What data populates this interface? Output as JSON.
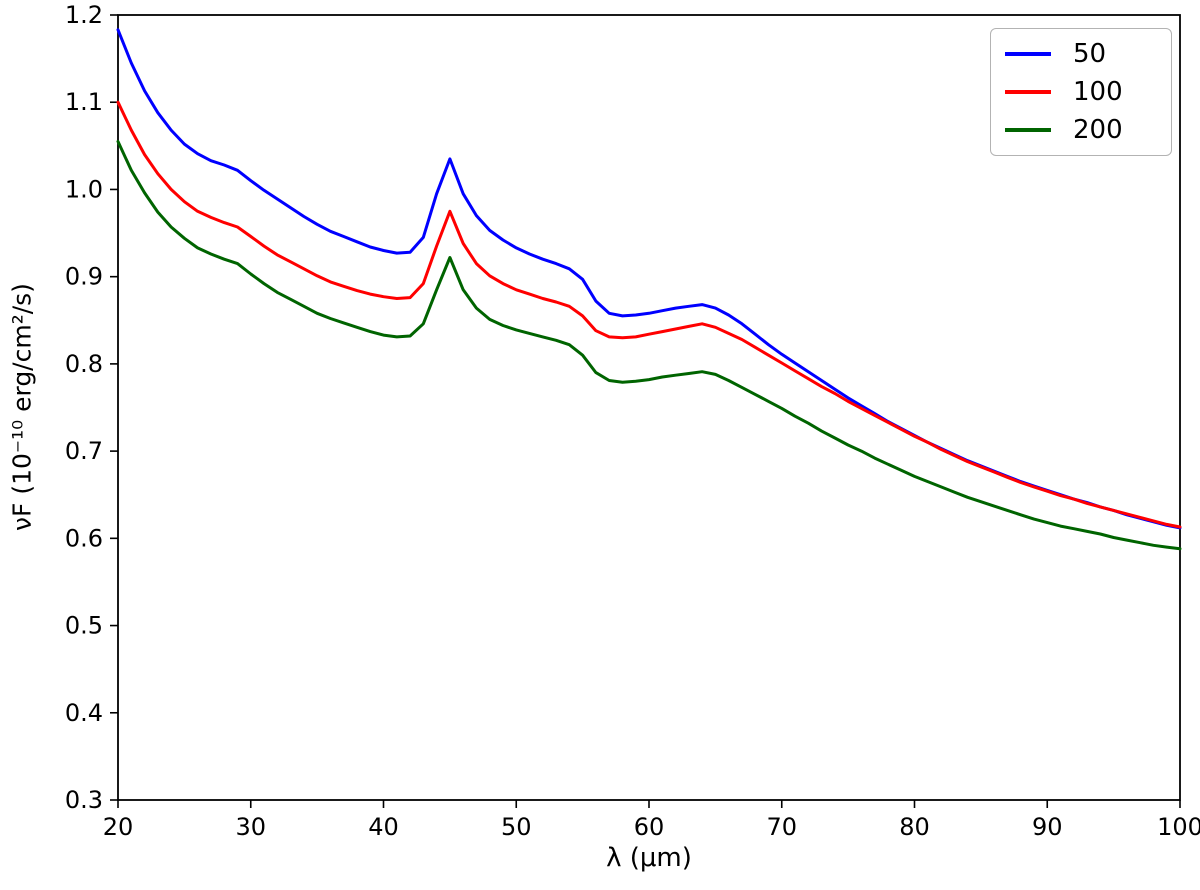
{
  "chart_data": {
    "type": "line",
    "title": "",
    "xlabel": "λ (μm)",
    "ylabel": "νF (10⁻¹⁰ erg/cm²/s)",
    "xlim": [
      20,
      100
    ],
    "ylim": [
      0.3,
      1.2
    ],
    "xticks": [
      20,
      30,
      40,
      50,
      60,
      70,
      80,
      90,
      100
    ],
    "yticks": [
      0.3,
      0.4,
      0.5,
      0.6,
      0.7,
      0.8,
      0.9,
      1.0,
      1.1,
      1.2
    ],
    "grid": false,
    "legend_position": "upper right",
    "frame_color": "#000000",
    "x": [
      20,
      21,
      22,
      23,
      24,
      25,
      26,
      27,
      28,
      29,
      30,
      31,
      32,
      33,
      34,
      35,
      36,
      37,
      38,
      39,
      40,
      41,
      42,
      43,
      44,
      45,
      46,
      47,
      48,
      49,
      50,
      51,
      52,
      53,
      54,
      55,
      56,
      57,
      58,
      59,
      60,
      61,
      62,
      63,
      64,
      65,
      66,
      67,
      68,
      69,
      70,
      71,
      72,
      73,
      74,
      75,
      76,
      77,
      78,
      79,
      80,
      81,
      82,
      83,
      84,
      85,
      86,
      87,
      88,
      89,
      90,
      91,
      92,
      93,
      94,
      95,
      96,
      97,
      98,
      99,
      100
    ],
    "series": [
      {
        "name": "50",
        "color": "#0000ff",
        "values": [
          1.183,
          1.145,
          1.113,
          1.088,
          1.068,
          1.052,
          1.041,
          1.033,
          1.028,
          1.022,
          1.01,
          0.999,
          0.989,
          0.979,
          0.969,
          0.96,
          0.952,
          0.946,
          0.94,
          0.934,
          0.93,
          0.927,
          0.928,
          0.945,
          0.995,
          1.035,
          0.995,
          0.97,
          0.953,
          0.942,
          0.933,
          0.926,
          0.92,
          0.915,
          0.909,
          0.897,
          0.872,
          0.858,
          0.855,
          0.856,
          0.858,
          0.861,
          0.864,
          0.866,
          0.868,
          0.864,
          0.856,
          0.846,
          0.834,
          0.822,
          0.811,
          0.801,
          0.791,
          0.781,
          0.771,
          0.761,
          0.752,
          0.743,
          0.734,
          0.726,
          0.718,
          0.71,
          0.703,
          0.696,
          0.689,
          0.683,
          0.677,
          0.671,
          0.665,
          0.66,
          0.655,
          0.65,
          0.645,
          0.641,
          0.636,
          0.632,
          0.627,
          0.623,
          0.619,
          0.615,
          0.612
        ]
      },
      {
        "name": "100",
        "color": "#ff0000",
        "values": [
          1.1,
          1.068,
          1.04,
          1.018,
          1.0,
          0.986,
          0.975,
          0.968,
          0.962,
          0.957,
          0.946,
          0.935,
          0.925,
          0.917,
          0.909,
          0.901,
          0.894,
          0.889,
          0.884,
          0.88,
          0.877,
          0.875,
          0.876,
          0.892,
          0.935,
          0.975,
          0.938,
          0.915,
          0.901,
          0.892,
          0.885,
          0.88,
          0.875,
          0.871,
          0.866,
          0.855,
          0.838,
          0.831,
          0.83,
          0.831,
          0.834,
          0.837,
          0.84,
          0.843,
          0.846,
          0.842,
          0.835,
          0.828,
          0.819,
          0.81,
          0.801,
          0.792,
          0.783,
          0.774,
          0.766,
          0.757,
          0.749,
          0.741,
          0.733,
          0.725,
          0.717,
          0.71,
          0.702,
          0.695,
          0.688,
          0.682,
          0.676,
          0.67,
          0.664,
          0.659,
          0.654,
          0.649,
          0.645,
          0.64,
          0.636,
          0.632,
          0.628,
          0.624,
          0.62,
          0.616,
          0.613
        ]
      },
      {
        "name": "200",
        "color": "#006400",
        "values": [
          1.055,
          1.022,
          0.996,
          0.974,
          0.957,
          0.944,
          0.933,
          0.926,
          0.92,
          0.915,
          0.903,
          0.892,
          0.882,
          0.874,
          0.866,
          0.858,
          0.852,
          0.847,
          0.842,
          0.837,
          0.833,
          0.831,
          0.832,
          0.846,
          0.885,
          0.922,
          0.885,
          0.864,
          0.851,
          0.844,
          0.839,
          0.835,
          0.831,
          0.827,
          0.822,
          0.81,
          0.79,
          0.781,
          0.779,
          0.78,
          0.782,
          0.785,
          0.787,
          0.789,
          0.791,
          0.788,
          0.781,
          0.773,
          0.765,
          0.757,
          0.749,
          0.74,
          0.732,
          0.723,
          0.715,
          0.707,
          0.7,
          0.692,
          0.685,
          0.678,
          0.671,
          0.665,
          0.659,
          0.653,
          0.647,
          0.642,
          0.637,
          0.632,
          0.627,
          0.622,
          0.618,
          0.614,
          0.611,
          0.608,
          0.605,
          0.601,
          0.598,
          0.595,
          0.592,
          0.59,
          0.588
        ]
      }
    ]
  }
}
